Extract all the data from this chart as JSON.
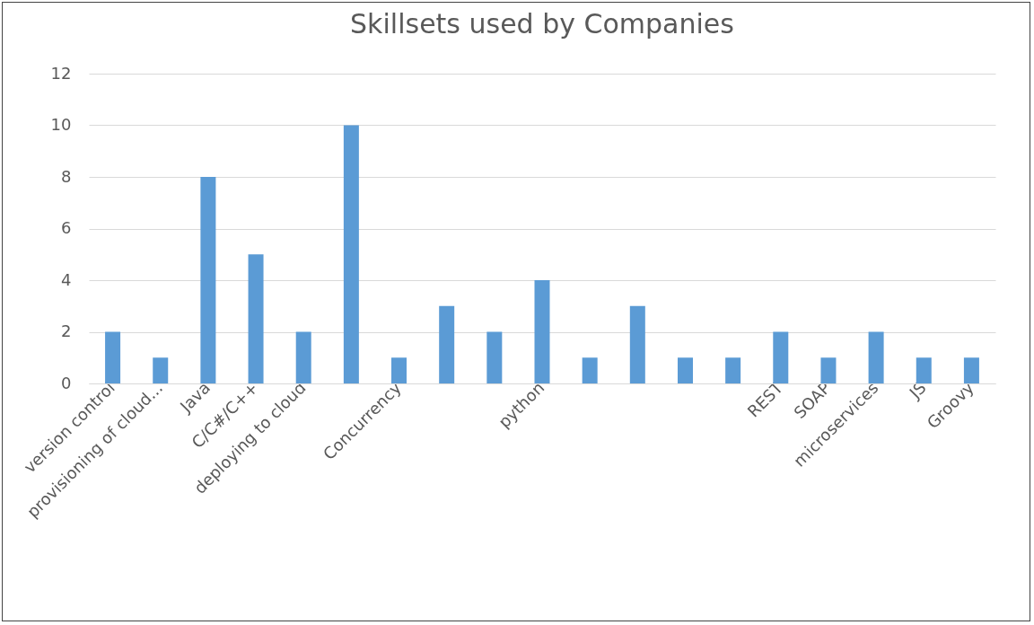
{
  "chart_data": {
    "type": "bar",
    "title": "Skillsets used by Companies",
    "categories": [
      "version control",
      "provisioning of cloud...",
      "Java",
      "C/C#/C++",
      "deploying to cloud",
      null,
      "Concurrency",
      null,
      null,
      "python",
      null,
      null,
      null,
      null,
      "REST",
      "SOAP",
      "microservices",
      "JS",
      "Groovy"
    ],
    "values": [
      2,
      1,
      8,
      5,
      2,
      10,
      1,
      3,
      2,
      4,
      1,
      3,
      1,
      1,
      2,
      1,
      2,
      1,
      1
    ],
    "color": "#5b9bd5",
    "ylim": [
      0,
      12
    ],
    "yticks": [
      0,
      2,
      4,
      6,
      8,
      10,
      12
    ],
    "grid": "y"
  }
}
